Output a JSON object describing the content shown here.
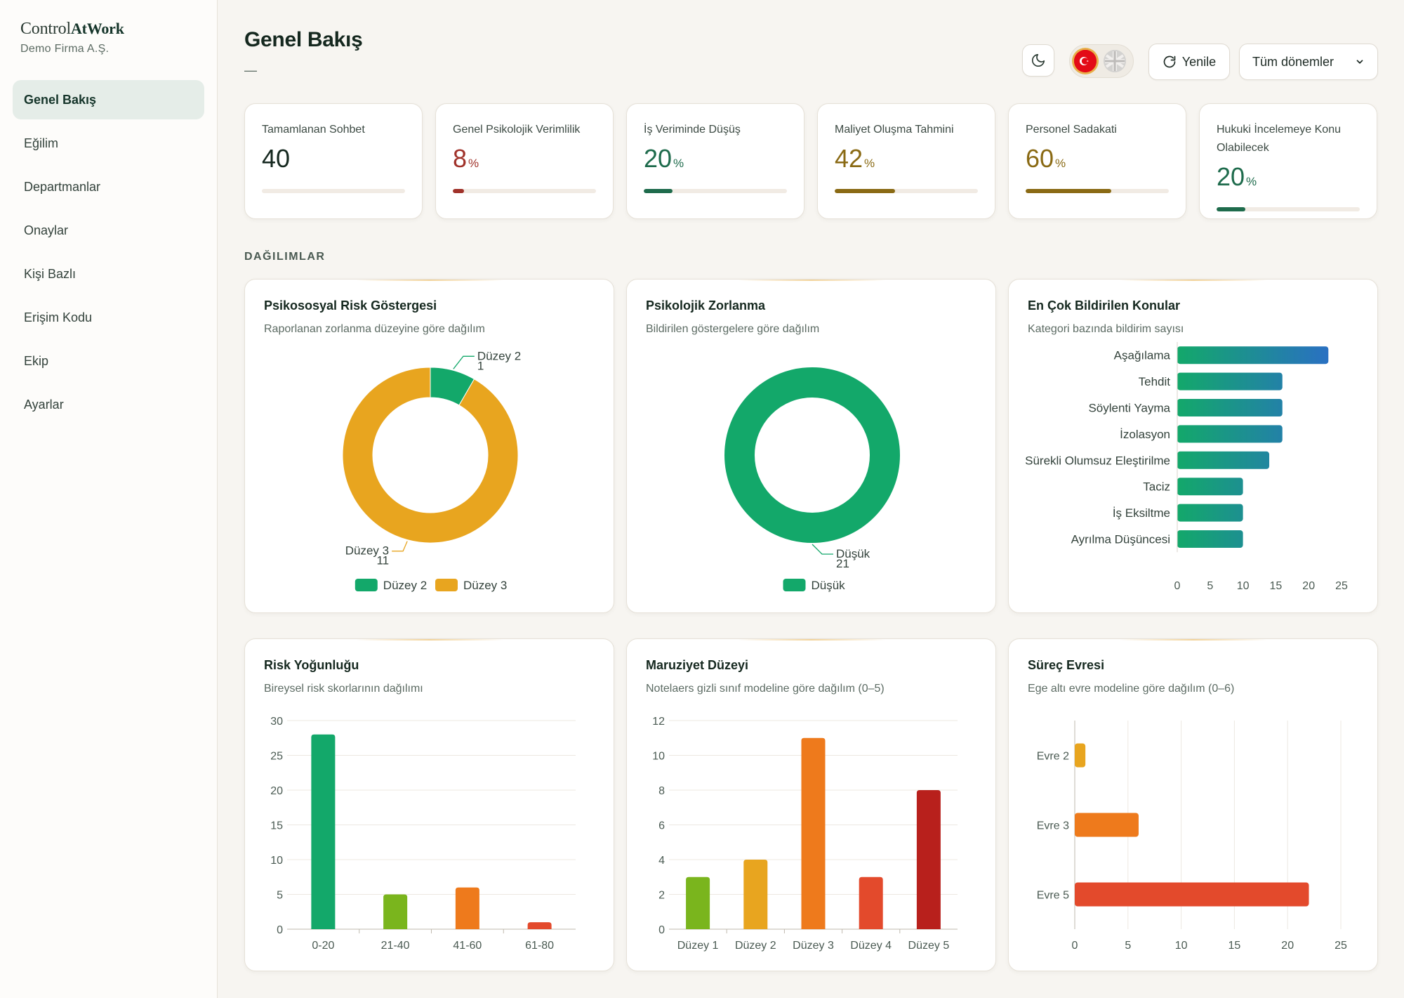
{
  "brand": {
    "name_main": "Control",
    "name_bold": "AtWork",
    "company": "Demo Firma A.Ş."
  },
  "sidebar": {
    "items": [
      {
        "label": "Genel Bakış",
        "active": true
      },
      {
        "label": "Eğilim"
      },
      {
        "label": "Departmanlar"
      },
      {
        "label": "Onaylar"
      },
      {
        "label": "Kişi Bazlı"
      },
      {
        "label": "Erişim Kodu"
      },
      {
        "label": "Ekip"
      },
      {
        "label": "Ayarlar"
      }
    ]
  },
  "header": {
    "title": "Genel Bakış",
    "subtitle": "—",
    "theme_icon": "moon-icon",
    "languages": [
      "tr-flag-icon",
      "uk-flag-icon"
    ],
    "refresh_label": "Yenile",
    "period_selected": "Tüm dönemler"
  },
  "kpis": [
    {
      "label": "Tamamlanan Sohbet",
      "value": "40",
      "unit": "",
      "fraction": 0,
      "color": "#15281f"
    },
    {
      "label": "Genel Psikolojik Verimlilik",
      "value": "8",
      "unit": "%",
      "fraction": 0.08,
      "color": "#a0322a"
    },
    {
      "label": "İş Veriminde Düşüş",
      "value": "20",
      "unit": "%",
      "fraction": 0.2,
      "color": "#1e6b4c"
    },
    {
      "label": "Maliyet Oluşma Tahmini",
      "value": "42",
      "unit": "%",
      "fraction": 0.42,
      "color": "#8a6a14"
    },
    {
      "label": "Personel Sadakati",
      "value": "60",
      "unit": "%",
      "fraction": 0.6,
      "color": "#8a6a14"
    },
    {
      "label": "Hukuki İncelemeye Konu Olabilecek",
      "value": "20",
      "unit": "%",
      "fraction": 0.2,
      "color": "#1e6b4c"
    }
  ],
  "section_title": "DAĞILIMLAR",
  "chart_data": [
    {
      "type": "pie",
      "title": "Psikososyal Risk Göstergesi",
      "subtitle": "Raporlanan zorlanma düzeyine göre dağılım",
      "slices": [
        {
          "name": "Düzey 2",
          "value": 1,
          "color": "#13a86a"
        },
        {
          "name": "Düzey 3",
          "value": 11,
          "color": "#e8a51f"
        }
      ],
      "legend": "bottom"
    },
    {
      "type": "pie",
      "title": "Psikolojik Zorlanma",
      "subtitle": "Bildirilen göstergelere göre dağılım",
      "slices": [
        {
          "name": "Düşük",
          "value": 21,
          "color": "#13a86a"
        }
      ],
      "legend": "bottom"
    },
    {
      "type": "bar",
      "orientation": "horizontal",
      "title": "En Çok Bildirilen Konular",
      "subtitle": "Kategori bazında bildirim sayısı",
      "categories": [
        "Aşağılama",
        "Tehdit",
        "Söylenti Yayma",
        "İzolasyon",
        "Sürekli Olumsuz Eleştirilme",
        "Taciz",
        "İş Eksiltme",
        "Ayrılma Düşüncesi"
      ],
      "values": [
        23,
        16,
        16,
        16,
        14,
        10,
        10,
        10
      ],
      "xticks": [
        0,
        5,
        10,
        15,
        20,
        25
      ],
      "xlim": [
        0,
        25
      ],
      "grid": false
    },
    {
      "type": "bar",
      "title": "Risk Yoğunluğu",
      "subtitle": "Bireysel risk skorlarının dağılımı",
      "categories": [
        "0-20",
        "21-40",
        "41-60",
        "61-80"
      ],
      "values": [
        28,
        5,
        6,
        1
      ],
      "colors": [
        "#13a86a",
        "#7ab51d",
        "#ee7a1c",
        "#e34a2c"
      ],
      "yticks": [
        0,
        5,
        10,
        15,
        20,
        25,
        30
      ],
      "ylim": [
        0,
        30
      ],
      "grid": true
    },
    {
      "type": "bar",
      "title": "Maruziyet Düzeyi",
      "subtitle": "Notelaers gizli sınıf modeline göre dağılım (0–5)",
      "categories": [
        "Düzey 1",
        "Düzey 2",
        "Düzey 3",
        "Düzey 4",
        "Düzey 5"
      ],
      "values": [
        3,
        4,
        11,
        3,
        8
      ],
      "colors": [
        "#7ab51d",
        "#e8a51f",
        "#ee7a1c",
        "#e34a2c",
        "#b8201c"
      ],
      "yticks": [
        0,
        2,
        4,
        6,
        8,
        10,
        12
      ],
      "ylim": [
        0,
        12
      ],
      "grid": true
    },
    {
      "type": "bar",
      "orientation": "horizontal",
      "title": "Süreç Evresi",
      "subtitle": "Ege altı evre modeline göre dağılım (0–6)",
      "categories": [
        "Evre 2",
        "Evre 3",
        "Evre 5"
      ],
      "values": [
        1,
        6,
        22
      ],
      "colors": [
        "#e8a51f",
        "#ee7a1c",
        "#e34a2c"
      ],
      "xticks": [
        0,
        5,
        10,
        15,
        20,
        25
      ],
      "xlim": [
        0,
        25
      ],
      "grid": true
    }
  ]
}
